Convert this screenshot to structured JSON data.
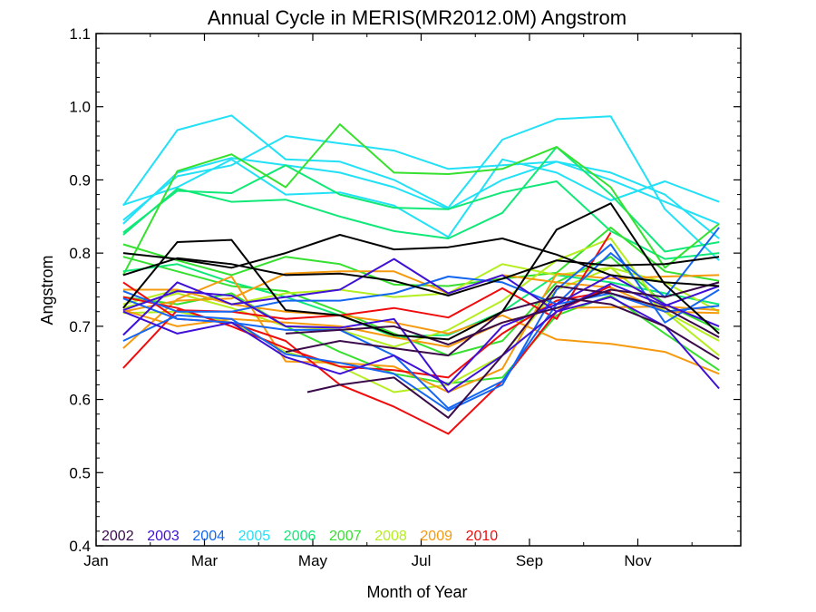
{
  "chart_data": {
    "type": "line",
    "title": "Annual Cycle in MERIS(MR2012.0M) Angstrom",
    "xlabel": "Month of Year",
    "ylabel": "Angstrom",
    "xlim": [
      1,
      12.9
    ],
    "ylim": [
      0.4,
      1.1
    ],
    "x_ticks": [
      {
        "value": 1,
        "label": "Jan"
      },
      {
        "value": 3,
        "label": "Mar"
      },
      {
        "value": 5,
        "label": "May"
      },
      {
        "value": 7,
        "label": "Jul"
      },
      {
        "value": 9,
        "label": "Sep"
      },
      {
        "value": 11,
        "label": "Nov"
      }
    ],
    "y_ticks": [
      {
        "value": 0.4,
        "label": "0.4"
      },
      {
        "value": 0.5,
        "label": "0.5"
      },
      {
        "value": 0.6,
        "label": "0.6"
      },
      {
        "value": 0.7,
        "label": "0.7"
      },
      {
        "value": 0.8,
        "label": "0.8"
      },
      {
        "value": 0.9,
        "label": "0.9"
      },
      {
        "value": 1.0,
        "label": "1.0"
      },
      {
        "value": 1.1,
        "label": "1.1"
      }
    ],
    "grid": false,
    "legend_position": "bottom-left",
    "legend": [
      {
        "label": "2002",
        "color": "#3a0a4a"
      },
      {
        "label": "2003",
        "color": "#3f10d6"
      },
      {
        "label": "2004",
        "color": "#1466f2"
      },
      {
        "label": "2005",
        "color": "#22e0f5"
      },
      {
        "label": "2006",
        "color": "#10e878"
      },
      {
        "label": "2007",
        "color": "#36e02e"
      },
      {
        "label": "2008",
        "color": "#b4ee1e"
      },
      {
        "label": "2009",
        "color": "#f59a0e"
      },
      {
        "label": "2010",
        "color": "#f00c0c"
      }
    ],
    "series": [
      {
        "color": "#22e0f5",
        "x": [
          1.5,
          2.5,
          3.5,
          4.5,
          5.5,
          6.5,
          7.5,
          8.5,
          9.5,
          10.5,
          11.5,
          12.5
        ],
        "y": [
          0.865,
          0.968,
          0.988,
          0.928,
          0.925,
          0.9,
          0.862,
          0.955,
          0.983,
          0.987,
          0.86,
          0.79
        ]
      },
      {
        "color": "#22e0f5",
        "x": [
          1.5,
          2.5,
          3.5,
          4.5,
          5.5,
          6.5,
          7.5,
          8.5,
          9.5,
          10.5,
          11.5,
          12.5
        ],
        "y": [
          0.845,
          0.905,
          0.92,
          0.96,
          0.95,
          0.94,
          0.915,
          0.92,
          0.925,
          0.9,
          0.87,
          0.84
        ]
      },
      {
        "color": "#22e0f5",
        "x": [
          1.5,
          2.5,
          3.5,
          4.5,
          5.5,
          6.5,
          7.5,
          8.5,
          9.5,
          10.5,
          11.5,
          12.5
        ],
        "y": [
          0.866,
          0.89,
          0.928,
          0.88,
          0.883,
          0.865,
          0.822,
          0.928,
          0.91,
          0.872,
          0.898,
          0.87
        ]
      },
      {
        "color": "#22e0f5",
        "x": [
          1.5,
          2.5,
          3.5,
          4.5,
          5.5,
          6.5,
          7.5,
          8.5,
          9.5,
          10.5,
          11.5,
          12.5
        ],
        "y": [
          0.84,
          0.91,
          0.93,
          0.92,
          0.91,
          0.89,
          0.86,
          0.9,
          0.925,
          0.91,
          0.88,
          0.82
        ]
      },
      {
        "color": "#10e878",
        "x": [
          1.5,
          2.5,
          3.5,
          4.5,
          5.5,
          6.5,
          7.5,
          8.5,
          9.5,
          10.5,
          11.5,
          12.5
        ],
        "y": [
          0.828,
          0.885,
          0.882,
          0.92,
          0.88,
          0.862,
          0.86,
          0.883,
          0.898,
          0.83,
          0.792,
          0.8
        ]
      },
      {
        "color": "#10e878",
        "x": [
          1.5,
          2.5,
          3.5,
          4.5,
          5.5,
          6.5,
          7.5,
          8.5,
          9.5,
          10.5,
          11.5,
          12.5
        ],
        "y": [
          0.825,
          0.888,
          0.87,
          0.873,
          0.85,
          0.83,
          0.82,
          0.855,
          0.945,
          0.88,
          0.802,
          0.815
        ]
      },
      {
        "color": "#36e02e",
        "x": [
          1.5,
          2.5,
          3.5,
          4.5,
          5.5,
          6.5,
          7.5,
          8.5,
          9.5,
          10.5,
          11.5,
          12.5
        ],
        "y": [
          0.77,
          0.912,
          0.935,
          0.89,
          0.976,
          0.91,
          0.908,
          0.915,
          0.945,
          0.89,
          0.78,
          0.84
        ]
      },
      {
        "color": "#36e02e",
        "x": [
          1.5,
          2.5,
          3.5,
          4.5,
          5.5,
          6.5,
          7.5,
          8.5,
          9.5,
          10.5,
          11.5,
          12.5
        ],
        "y": [
          0.812,
          0.79,
          0.77,
          0.795,
          0.785,
          0.757,
          0.755,
          0.765,
          0.773,
          0.835,
          0.775,
          0.762
        ]
      },
      {
        "color": "#36e02e",
        "x": [
          1.5,
          2.5,
          3.5,
          4.5,
          5.5,
          6.5,
          7.5,
          8.5,
          9.5,
          10.5,
          11.5,
          12.5
        ],
        "y": [
          0.795,
          0.775,
          0.755,
          0.748,
          0.72,
          0.69,
          0.66,
          0.68,
          0.76,
          0.795,
          0.73,
          0.695
        ]
      },
      {
        "color": "#10e878",
        "x": [
          1.5,
          2.5,
          3.5,
          4.5,
          5.5,
          6.5,
          7.5,
          8.5,
          9.5,
          10.5,
          11.5,
          12.5
        ],
        "y": [
          0.775,
          0.785,
          0.76,
          0.74,
          0.715,
          0.686,
          0.688,
          0.72,
          0.77,
          0.76,
          0.745,
          0.73
        ]
      },
      {
        "color": "#36e02e",
        "x": [
          1.5,
          2.5,
          3.5,
          4.5,
          5.5,
          6.5,
          7.5,
          8.5,
          9.5,
          10.5,
          11.5,
          12.5
        ],
        "y": [
          0.74,
          0.73,
          0.745,
          0.7,
          0.665,
          0.635,
          0.622,
          0.63,
          0.715,
          0.742,
          0.69,
          0.64
        ]
      },
      {
        "color": "#b4ee1e",
        "x": [
          1.5,
          2.5,
          3.5,
          4.5,
          5.5,
          6.5,
          7.5,
          8.5,
          9.5,
          10.5,
          11.5,
          12.5
        ],
        "y": [
          0.73,
          0.75,
          0.73,
          0.745,
          0.75,
          0.74,
          0.745,
          0.785,
          0.77,
          0.78,
          0.76,
          0.72
        ]
      },
      {
        "color": "#b4ee1e",
        "x": [
          1.5,
          2.5,
          3.5,
          4.5,
          5.5,
          6.5,
          7.5,
          8.5,
          9.5,
          10.5,
          11.5,
          12.5
        ],
        "y": [
          0.725,
          0.745,
          0.725,
          0.7,
          0.695,
          0.672,
          0.695,
          0.735,
          0.79,
          0.82,
          0.72,
          0.66
        ]
      },
      {
        "color": "#b4ee1e",
        "x": [
          1.5,
          2.5,
          3.5,
          4.5,
          5.5,
          6.5,
          7.5,
          8.5,
          9.5,
          10.5,
          11.5,
          12.5
        ],
        "y": [
          0.718,
          0.72,
          0.705,
          0.665,
          0.645,
          0.61,
          0.62,
          0.66,
          0.75,
          0.78,
          0.72,
          0.68
        ]
      },
      {
        "color": "#f59a0e",
        "x": [
          1.5,
          2.5,
          3.5,
          4.5,
          5.5,
          6.5,
          7.5,
          8.5,
          9.5,
          10.5,
          11.5,
          12.5
        ],
        "y": [
          0.67,
          0.737,
          0.768,
          0.652,
          0.65,
          0.645,
          0.61,
          0.642,
          0.772,
          0.765,
          0.768,
          0.77
        ]
      },
      {
        "color": "#f59a0e",
        "x": [
          1.5,
          2.5,
          3.5,
          4.5,
          5.5,
          6.5,
          7.5,
          8.5,
          9.5,
          10.5,
          11.5,
          12.5
        ],
        "y": [
          0.72,
          0.735,
          0.738,
          0.772,
          0.775,
          0.775,
          0.745,
          0.77,
          0.76,
          0.753,
          0.72,
          0.718
        ]
      },
      {
        "color": "#f59a0e",
        "x": [
          1.5,
          2.5,
          3.5,
          4.5,
          5.5,
          6.5,
          7.5,
          8.5,
          9.5,
          10.5,
          11.5,
          12.5
        ],
        "y": [
          0.75,
          0.75,
          0.73,
          0.72,
          0.715,
          0.705,
          0.69,
          0.715,
          0.682,
          0.676,
          0.665,
          0.635
        ]
      },
      {
        "color": "#f59a0e",
        "x": [
          1.5,
          2.5,
          3.5,
          4.5,
          5.5,
          6.5,
          7.5,
          8.5,
          9.5,
          10.5,
          11.5,
          12.5
        ],
        "y": [
          0.722,
          0.7,
          0.71,
          0.705,
          0.7,
          0.685,
          0.672,
          0.705,
          0.725,
          0.726,
          0.727,
          0.722
        ]
      },
      {
        "color": "#f00c0c",
        "x": [
          1.5,
          2.5,
          3.5,
          4.5,
          5.5,
          6.5,
          7.5,
          8.5,
          9.5,
          10.5
        ],
        "y": [
          0.643,
          0.722,
          0.72,
          0.71,
          0.715,
          0.725,
          0.712,
          0.752,
          0.71,
          0.828
        ]
      },
      {
        "color": "#f00c0c",
        "x": [
          1.5,
          2.5,
          3.5,
          4.5,
          5.5,
          6.5,
          7.5,
          8.5,
          9.5,
          10.5
        ],
        "y": [
          0.76,
          0.71,
          0.705,
          0.68,
          0.62,
          0.59,
          0.553,
          0.625,
          0.72,
          0.755
        ]
      },
      {
        "color": "#f00c0c",
        "x": [
          1.5,
          2.5,
          3.5,
          4.5,
          5.5,
          6.5,
          7.5,
          8.5,
          9.5,
          10.5
        ],
        "y": [
          0.74,
          0.725,
          0.7,
          0.67,
          0.645,
          0.64,
          0.63,
          0.69,
          0.735,
          0.748
        ]
      },
      {
        "color": "#1466f2",
        "x": [
          1.5,
          2.5,
          3.5,
          4.5,
          5.5,
          6.5,
          7.5,
          8.5,
          9.5,
          10.5,
          11.5,
          12.5
        ],
        "y": [
          0.68,
          0.715,
          0.71,
          0.662,
          0.65,
          0.635,
          0.585,
          0.62,
          0.75,
          0.812,
          0.705,
          0.75
        ]
      },
      {
        "color": "#1466f2",
        "x": [
          1.5,
          2.5,
          3.5,
          4.5,
          5.5,
          6.5,
          7.5,
          8.5,
          9.5,
          10.5,
          11.5,
          12.5
        ],
        "y": [
          0.748,
          0.72,
          0.72,
          0.735,
          0.735,
          0.745,
          0.768,
          0.76,
          0.73,
          0.8,
          0.74,
          0.835
        ]
      },
      {
        "color": "#1466f2",
        "x": [
          1.5,
          2.5,
          3.5,
          4.5,
          5.5,
          6.5,
          7.5,
          8.5,
          9.5,
          10.5,
          11.5,
          12.5
        ],
        "y": [
          0.738,
          0.71,
          0.705,
          0.695,
          0.695,
          0.66,
          0.588,
          0.625,
          0.73,
          0.745,
          0.72,
          0.728
        ]
      },
      {
        "color": "#3f10d6",
        "x": [
          1.5,
          2.5,
          3.5,
          4.5,
          5.5,
          6.5,
          7.5,
          8.5,
          9.5,
          10.5,
          11.5,
          12.5
        ],
        "y": [
          0.688,
          0.76,
          0.73,
          0.74,
          0.75,
          0.792,
          0.745,
          0.77,
          0.72,
          0.74,
          0.7,
          0.615
        ]
      },
      {
        "color": "#3f10d6",
        "x": [
          1.5,
          2.5,
          3.5,
          4.5,
          5.5,
          6.5,
          7.5,
          8.5,
          9.5,
          10.5,
          11.5,
          12.5
        ],
        "y": [
          0.722,
          0.748,
          0.742,
          0.7,
          0.698,
          0.71,
          0.61,
          0.66,
          0.72,
          0.758,
          0.728,
          0.755
        ]
      },
      {
        "color": "#3f10d6",
        "x": [
          1.5,
          2.5,
          3.5,
          4.5,
          5.5,
          6.5,
          7.5,
          8.5,
          9.5,
          10.5,
          11.5,
          12.5
        ],
        "y": [
          0.72,
          0.69,
          0.705,
          0.658,
          0.635,
          0.66,
          0.62,
          0.7,
          0.73,
          0.77,
          0.73,
          0.7
        ]
      },
      {
        "color": "#3a0a4a",
        "x": [
          4.9,
          5.5,
          6.5,
          7.5,
          8.5,
          9.5,
          10.5,
          11.5,
          12.5
        ],
        "y": [
          0.61,
          0.62,
          0.63,
          0.575,
          0.66,
          0.755,
          0.745,
          0.725,
          0.685
        ]
      },
      {
        "color": "#3a0a4a",
        "x": [
          4.5,
          5.5,
          6.5,
          7.5,
          8.5,
          9.5,
          10.5,
          11.5,
          12.5
        ],
        "y": [
          0.665,
          0.68,
          0.67,
          0.66,
          0.72,
          0.74,
          0.73,
          0.7,
          0.655
        ]
      },
      {
        "color": "#3a0a4a",
        "x": [
          4.5,
          5.5,
          6.5,
          7.5,
          8.5,
          9.5,
          10.5,
          11.5,
          12.5
        ],
        "y": [
          0.69,
          0.695,
          0.7,
          0.675,
          0.705,
          0.725,
          0.75,
          0.74,
          0.76
        ]
      },
      {
        "color": "#000000",
        "x": [
          1.5,
          2.5,
          3.5,
          4.5,
          5.5,
          6.5,
          7.5,
          8.5,
          9.5,
          10.5,
          11.5,
          12.5
        ],
        "y": [
          0.8,
          0.792,
          0.78,
          0.8,
          0.825,
          0.805,
          0.808,
          0.82,
          0.798,
          0.77,
          0.76,
          0.755
        ]
      },
      {
        "color": "#000000",
        "x": [
          1.5,
          2.5,
          3.5,
          4.5,
          5.5,
          6.5,
          7.5,
          8.5,
          9.5,
          10.5,
          11.5,
          12.5
        ],
        "y": [
          0.725,
          0.815,
          0.818,
          0.722,
          0.715,
          0.688,
          0.682,
          0.72,
          0.832,
          0.868,
          0.757,
          0.69
        ]
      },
      {
        "color": "#000000",
        "x": [
          1.5,
          2.5,
          3.5,
          4.5,
          5.5,
          6.5,
          7.5,
          8.5,
          9.5,
          10.5,
          11.5,
          12.5
        ],
        "y": [
          0.77,
          0.793,
          0.785,
          0.77,
          0.772,
          0.762,
          0.742,
          0.765,
          0.79,
          0.783,
          0.785,
          0.795
        ]
      }
    ]
  }
}
